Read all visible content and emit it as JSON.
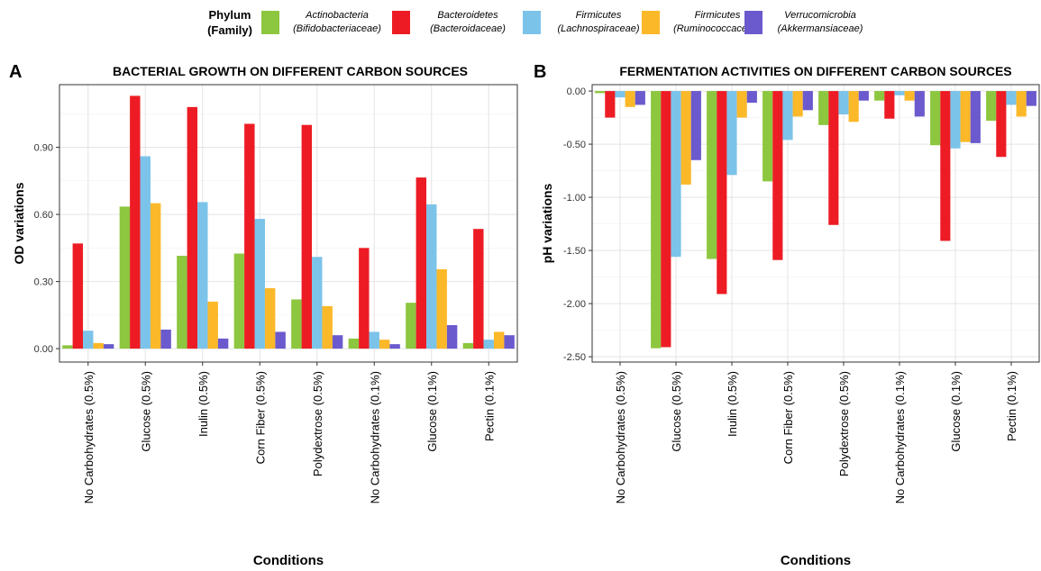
{
  "legend": {
    "title": "Phylum\n(Family)",
    "items": [
      {
        "line1": "Actinobacteria",
        "line2": "(Bifidobacteriaceae)",
        "color": "#8dc63f"
      },
      {
        "line1": "Bacteroidetes",
        "line2": "(Bacteroidaceae)",
        "color": "#ed1c24"
      },
      {
        "line1": "Firmicutes",
        "line2": "(Lachnospiraceae)",
        "color": "#7cc3ea"
      },
      {
        "line1": "Firmicutes",
        "line2": "(Ruminococcaceae)",
        "color": "#fbb829"
      },
      {
        "line1": "Verrucomicrobia",
        "line2": "(Akkermansiaceae)",
        "color": "#6a5acd"
      }
    ]
  },
  "chart_data": [
    {
      "panel": "A",
      "type": "bar",
      "title": "BACTERIAL GROWTH ON DIFFERENT CARBON SOURCES",
      "xlabel": "Conditions",
      "ylabel": "OD variations",
      "ylim": [
        -0.06,
        1.18
      ],
      "yticks": [
        "0.00",
        "0.30",
        "0.60",
        "0.90"
      ],
      "grid": true,
      "categories": [
        "No Carbohydrates (0.5%)",
        "Glucose (0.5%)",
        "Inulin (0.5%)",
        "Corn Fiber (0.5%)",
        "Polydextrose (0.5%)",
        "No Carbohydrates (0.1%)",
        "Glucose (0.1%)",
        "Pectin (0.1%)"
      ],
      "series": [
        {
          "name": "Actinobacteria (Bifidobacteriaceae)",
          "values": [
            0.015,
            0.635,
            0.415,
            0.425,
            0.22,
            0.045,
            0.205,
            0.025
          ]
        },
        {
          "name": "Bacteroidetes (Bacteroidaceae)",
          "values": [
            0.47,
            1.13,
            1.08,
            1.005,
            1.0,
            0.45,
            0.765,
            0.535
          ]
        },
        {
          "name": "Firmicutes (Lachnospiraceae)",
          "values": [
            0.08,
            0.86,
            0.655,
            0.58,
            0.41,
            0.075,
            0.645,
            0.04
          ]
        },
        {
          "name": "Firmicutes (Ruminococcaceae)",
          "values": [
            0.025,
            0.65,
            0.21,
            0.27,
            0.19,
            0.04,
            0.355,
            0.075
          ]
        },
        {
          "name": "Verrucomicrobia (Akkermansiaceae)",
          "values": [
            0.02,
            0.085,
            0.045,
            0.075,
            0.06,
            0.02,
            0.105,
            0.06
          ]
        }
      ]
    },
    {
      "panel": "B",
      "type": "bar",
      "title": "FERMENTATION ACTIVITIES ON DIFFERENT CARBON SOURCES",
      "xlabel": "Conditions",
      "ylabel": "pH variations",
      "ylim": [
        -2.55,
        0.06
      ],
      "yticks": [
        "0.00",
        "-0.50",
        "-1.00",
        "-1.50",
        "-2.00",
        "-2.50"
      ],
      "grid": true,
      "categories": [
        "No Carbohydrates (0.5%)",
        "Glucose (0.5%)",
        "Inulin (0.5%)",
        "Corn Fiber (0.5%)",
        "Polydextrose (0.5%)",
        "No Carbohydrates (0.1%)",
        "Glucose (0.1%)",
        "Pectin (0.1%)"
      ],
      "series": [
        {
          "name": "Actinobacteria (Bifidobacteriaceae)",
          "values": [
            -0.02,
            -2.42,
            -1.58,
            -0.85,
            -0.32,
            -0.09,
            -0.51,
            -0.28
          ]
        },
        {
          "name": "Bacteroidetes (Bacteroidaceae)",
          "values": [
            -0.25,
            -2.41,
            -1.91,
            -1.59,
            -1.26,
            -0.26,
            -1.41,
            -0.62
          ]
        },
        {
          "name": "Firmicutes (Lachnospiraceae)",
          "values": [
            -0.06,
            -1.56,
            -0.79,
            -0.46,
            -0.22,
            -0.04,
            -0.54,
            -0.13
          ]
        },
        {
          "name": "Firmicutes (Ruminococcaceae)",
          "values": [
            -0.15,
            -0.88,
            -0.25,
            -0.24,
            -0.29,
            -0.09,
            -0.48,
            -0.24
          ]
        },
        {
          "name": "Verrucomicrobia (Akkermansiaceae)",
          "values": [
            -0.13,
            -0.65,
            -0.11,
            -0.18,
            -0.09,
            -0.24,
            -0.49,
            -0.14
          ]
        }
      ]
    }
  ]
}
